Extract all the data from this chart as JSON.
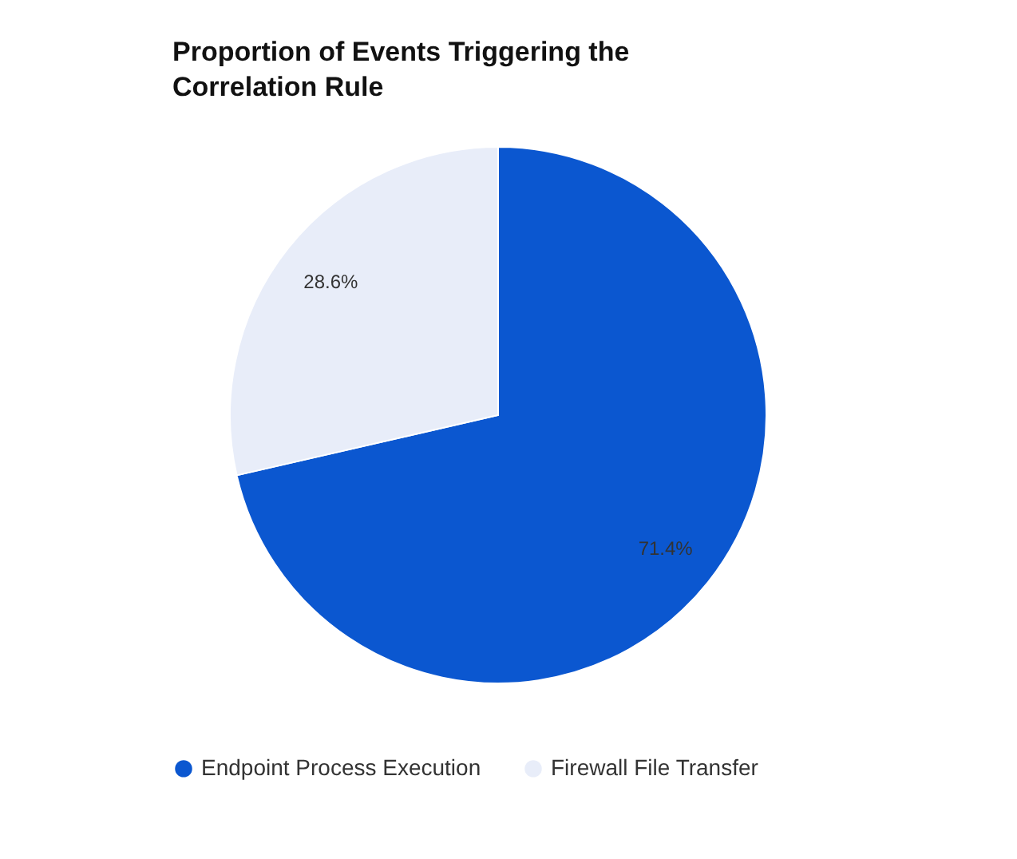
{
  "chart_data": {
    "type": "pie",
    "title": "Proportion of Events Triggering the Correlation Rule",
    "categories": [
      "Endpoint Process Execution",
      "Firewall File Transfer"
    ],
    "values": [
      71.4,
      28.6
    ],
    "colors": [
      "#0b57d0",
      "#e8edf9"
    ],
    "value_labels": [
      "71.4%",
      "28.6%"
    ],
    "legend": "bottom"
  }
}
